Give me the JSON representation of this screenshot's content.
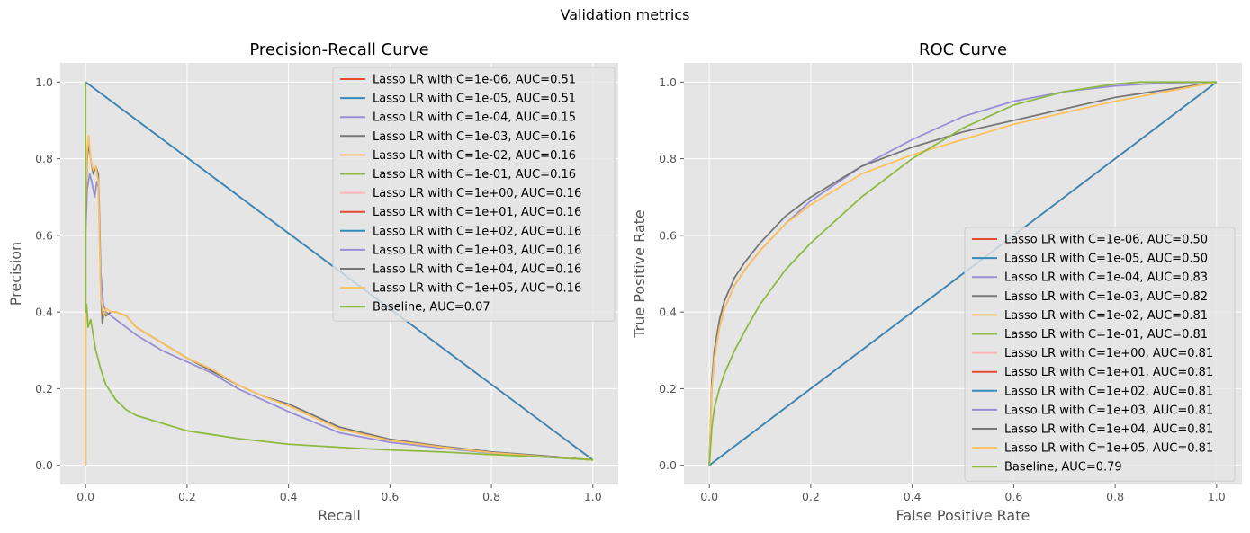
{
  "suptitle": "Validation metrics",
  "colors": {
    "red": "#E24A33",
    "blue": "#348ABD",
    "purple": "#988ED5",
    "gray": "#777777",
    "yellow": "#FBC15E",
    "green": "#8EBA42",
    "pink": "#FFB5B8",
    "panel_bg": "#E5E5E5"
  },
  "chart_data": [
    {
      "type": "line",
      "title": "Precision-Recall Curve",
      "xlabel": "Recall",
      "ylabel": "Precision",
      "xlim": [
        -0.05,
        1.05
      ],
      "ylim": [
        -0.05,
        1.05
      ],
      "xticks": [
        0.0,
        0.2,
        0.4,
        0.6,
        0.8,
        1.0
      ],
      "yticks": [
        0.0,
        0.2,
        0.4,
        0.6,
        0.8,
        1.0
      ],
      "tick_labels": [
        "0.0",
        "0.2",
        "0.4",
        "0.6",
        "0.8",
        "1.0"
      ],
      "grid": true,
      "legend_position": "upper-right",
      "series": [
        {
          "name": "Lasso LR with C=1e-06, AUC=0.51",
          "color": "#E24A33",
          "x": [
            0.0,
            1.0
          ],
          "y": [
            1.0,
            0.014
          ]
        },
        {
          "name": "Lasso LR with C=1e-05, AUC=0.51",
          "color": "#348ABD",
          "x": [
            0.0,
            1.0
          ],
          "y": [
            1.0,
            0.014
          ]
        },
        {
          "name": "Lasso LR with C=1e-04, AUC=0.15",
          "color": "#988ED5",
          "x": [
            0.0,
            0.0,
            0.003,
            0.008,
            0.012,
            0.018,
            0.022,
            0.026,
            0.03,
            0.035,
            0.04,
            0.05,
            0.06,
            0.08,
            0.1,
            0.15,
            0.2,
            0.25,
            0.3,
            0.35,
            0.4,
            0.5,
            0.6,
            0.7,
            0.8,
            0.9,
            1.0
          ],
          "y": [
            0.0,
            0.6,
            0.72,
            0.76,
            0.74,
            0.7,
            0.74,
            0.72,
            0.5,
            0.42,
            0.4,
            0.39,
            0.38,
            0.36,
            0.34,
            0.3,
            0.27,
            0.24,
            0.2,
            0.17,
            0.14,
            0.085,
            0.06,
            0.045,
            0.032,
            0.022,
            0.014
          ]
        },
        {
          "name": "Lasso LR with C=1e-03, AUC=0.16",
          "color": "#777777",
          "x": [
            0.0,
            0.0,
            0.003,
            0.006,
            0.01,
            0.015,
            0.02,
            0.025,
            0.03,
            0.033,
            0.036,
            0.04,
            0.05,
            0.06,
            0.08,
            0.1,
            0.15,
            0.2,
            0.25,
            0.3,
            0.35,
            0.4,
            0.5,
            0.6,
            0.7,
            0.8,
            0.9,
            1.0
          ],
          "y": [
            0.0,
            0.65,
            0.8,
            0.84,
            0.8,
            0.76,
            0.78,
            0.76,
            0.45,
            0.37,
            0.4,
            0.39,
            0.4,
            0.4,
            0.39,
            0.36,
            0.32,
            0.28,
            0.245,
            0.21,
            0.18,
            0.16,
            0.1,
            0.068,
            0.05,
            0.035,
            0.025,
            0.014
          ]
        },
        {
          "name": "Lasso LR with C=1e-02, AUC=0.16",
          "color": "#FBC15E",
          "x": [
            0.0,
            0.0,
            0.003,
            0.006,
            0.01,
            0.015,
            0.02,
            0.025,
            0.03,
            0.035,
            0.04,
            0.05,
            0.06,
            0.08,
            0.1,
            0.15,
            0.2,
            0.25,
            0.3,
            0.35,
            0.4,
            0.5,
            0.6,
            0.7,
            0.8,
            0.9,
            1.0
          ],
          "y": [
            0.0,
            0.68,
            0.82,
            0.86,
            0.8,
            0.77,
            0.78,
            0.74,
            0.44,
            0.39,
            0.41,
            0.4,
            0.4,
            0.39,
            0.36,
            0.32,
            0.28,
            0.25,
            0.21,
            0.18,
            0.155,
            0.095,
            0.065,
            0.048,
            0.033,
            0.023,
            0.014
          ]
        },
        {
          "name": "Lasso LR with C=1e-01, AUC=0.16",
          "color": "#8EBA42",
          "x": [],
          "y": []
        },
        {
          "name": "Lasso LR with C=1e+00, AUC=0.16",
          "color": "#FFB5B8",
          "x": [],
          "y": []
        },
        {
          "name": "Lasso LR with C=1e+01, AUC=0.16",
          "color": "#E24A33",
          "x": [],
          "y": []
        },
        {
          "name": "Lasso LR with C=1e+02, AUC=0.16",
          "color": "#348ABD",
          "x": [],
          "y": []
        },
        {
          "name": "Lasso LR with C=1e+03, AUC=0.16",
          "color": "#988ED5",
          "x": [],
          "y": []
        },
        {
          "name": "Lasso LR with C=1e+04, AUC=0.16",
          "color": "#777777",
          "x": [],
          "y": []
        },
        {
          "name": "Lasso LR with C=1e+05, AUC=0.16",
          "color": "#FBC15E",
          "x": [],
          "y": []
        },
        {
          "name": "Baseline, AUC=0.07",
          "color": "#8EBA42",
          "x": [
            0.0,
            0.0,
            0.002,
            0.005,
            0.01,
            0.015,
            0.02,
            0.03,
            0.04,
            0.05,
            0.06,
            0.08,
            0.1,
            0.15,
            0.2,
            0.3,
            0.4,
            0.5,
            0.6,
            0.7,
            0.8,
            0.9,
            1.0
          ],
          "y": [
            1.0,
            0.4,
            0.42,
            0.36,
            0.38,
            0.34,
            0.3,
            0.25,
            0.21,
            0.19,
            0.17,
            0.145,
            0.13,
            0.11,
            0.09,
            0.07,
            0.055,
            0.047,
            0.04,
            0.035,
            0.028,
            0.022,
            0.014
          ]
        }
      ]
    },
    {
      "type": "line",
      "title": "ROC Curve",
      "xlabel": "False Positive Rate",
      "ylabel": "True Positive Rate",
      "xlim": [
        -0.05,
        1.05
      ],
      "ylim": [
        -0.05,
        1.05
      ],
      "xticks": [
        0.0,
        0.2,
        0.4,
        0.6,
        0.8,
        1.0
      ],
      "yticks": [
        0.0,
        0.2,
        0.4,
        0.6,
        0.8,
        1.0
      ],
      "tick_labels": [
        "0.0",
        "0.2",
        "0.4",
        "0.6",
        "0.8",
        "1.0"
      ],
      "grid": true,
      "legend_position": "lower-right",
      "series": [
        {
          "name": "Lasso LR with C=1e-06, AUC=0.50",
          "color": "#E24A33",
          "x": [
            0.0,
            1.0
          ],
          "y": [
            0.0,
            1.0
          ]
        },
        {
          "name": "Lasso LR with C=1e-05, AUC=0.50",
          "color": "#348ABD",
          "x": [
            0.0,
            1.0
          ],
          "y": [
            0.0,
            1.0
          ]
        },
        {
          "name": "Lasso LR with C=1e-04, AUC=0.83",
          "color": "#988ED5",
          "x": [
            0.0,
            0.005,
            0.01,
            0.02,
            0.03,
            0.05,
            0.07,
            0.1,
            0.15,
            0.2,
            0.3,
            0.4,
            0.5,
            0.6,
            0.7,
            0.8,
            0.9,
            1.0
          ],
          "y": [
            0.0,
            0.2,
            0.28,
            0.36,
            0.41,
            0.47,
            0.51,
            0.56,
            0.63,
            0.69,
            0.78,
            0.85,
            0.91,
            0.95,
            0.975,
            0.99,
            0.998,
            1.0
          ]
        },
        {
          "name": "Lasso LR with C=1e-03, AUC=0.82",
          "color": "#777777",
          "x": [
            0.0,
            0.005,
            0.01,
            0.02,
            0.03,
            0.05,
            0.07,
            0.1,
            0.15,
            0.2,
            0.3,
            0.4,
            0.5,
            0.6,
            0.7,
            0.8,
            0.9,
            1.0
          ],
          "y": [
            0.0,
            0.22,
            0.3,
            0.38,
            0.43,
            0.49,
            0.53,
            0.58,
            0.65,
            0.7,
            0.78,
            0.83,
            0.87,
            0.9,
            0.93,
            0.96,
            0.98,
            1.0
          ]
        },
        {
          "name": "Lasso LR with C=1e-02, AUC=0.81",
          "color": "#FBC15E",
          "x": [
            0.0,
            0.005,
            0.01,
            0.02,
            0.03,
            0.05,
            0.07,
            0.1,
            0.15,
            0.2,
            0.3,
            0.4,
            0.5,
            0.6,
            0.7,
            0.8,
            0.9,
            1.0
          ],
          "y": [
            0.0,
            0.2,
            0.28,
            0.36,
            0.41,
            0.47,
            0.51,
            0.56,
            0.63,
            0.68,
            0.76,
            0.81,
            0.85,
            0.89,
            0.92,
            0.95,
            0.975,
            1.0
          ]
        },
        {
          "name": "Lasso LR with C=1e-01, AUC=0.81",
          "color": "#8EBA42",
          "x": [],
          "y": []
        },
        {
          "name": "Lasso LR with C=1e+00, AUC=0.81",
          "color": "#FFB5B8",
          "x": [],
          "y": []
        },
        {
          "name": "Lasso LR with C=1e+01, AUC=0.81",
          "color": "#E24A33",
          "x": [],
          "y": []
        },
        {
          "name": "Lasso LR with C=1e+02, AUC=0.81",
          "color": "#348ABD",
          "x": [],
          "y": []
        },
        {
          "name": "Lasso LR with C=1e+03, AUC=0.81",
          "color": "#988ED5",
          "x": [],
          "y": []
        },
        {
          "name": "Lasso LR with C=1e+04, AUC=0.81",
          "color": "#777777",
          "x": [],
          "y": []
        },
        {
          "name": "Lasso LR with C=1e+05, AUC=0.81",
          "color": "#FBC15E",
          "x": [],
          "y": []
        },
        {
          "name": "Baseline, AUC=0.79",
          "color": "#8EBA42",
          "x": [
            0.0,
            0.005,
            0.01,
            0.02,
            0.03,
            0.05,
            0.07,
            0.1,
            0.15,
            0.2,
            0.3,
            0.4,
            0.5,
            0.6,
            0.7,
            0.8,
            0.85,
            0.9,
            1.0
          ],
          "y": [
            0.0,
            0.1,
            0.15,
            0.2,
            0.24,
            0.3,
            0.35,
            0.42,
            0.51,
            0.58,
            0.7,
            0.8,
            0.88,
            0.94,
            0.975,
            0.995,
            1.0,
            1.0,
            1.0
          ]
        }
      ]
    }
  ]
}
